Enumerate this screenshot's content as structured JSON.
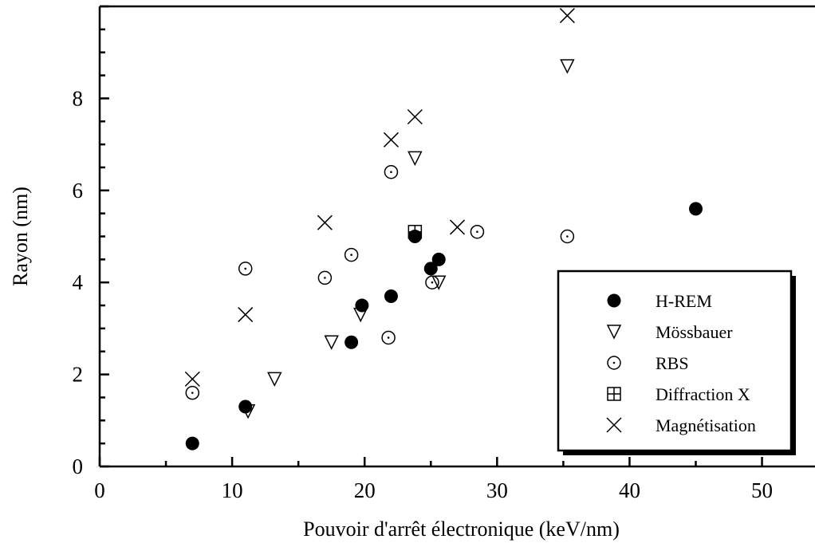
{
  "chart_data": {
    "type": "scatter",
    "title": "",
    "xlabel": "Pouvoir d'arrêt électronique (keV/nm)",
    "ylabel": "Rayon (nm)",
    "xlim": [
      0,
      54
    ],
    "ylim": [
      0,
      10
    ],
    "x_ticks": [
      "0",
      "10",
      "20",
      "30",
      "40",
      "50"
    ],
    "y_ticks": [
      "0",
      "2",
      "4",
      "6",
      "8"
    ],
    "grid": false,
    "legend_position": "bottom-right",
    "series": [
      {
        "name": "H-REM",
        "marker": "filled-circle",
        "points": [
          [
            7,
            0.5
          ],
          [
            11,
            1.3
          ],
          [
            19,
            2.7
          ],
          [
            19.8,
            3.5
          ],
          [
            22,
            3.7
          ],
          [
            23.8,
            5.0
          ],
          [
            25,
            4.3
          ],
          [
            25.6,
            4.5
          ],
          [
            45,
            5.6
          ]
        ]
      },
      {
        "name": "Mössbauer",
        "marker": "triangle-down",
        "points": [
          [
            11.2,
            1.2
          ],
          [
            13.2,
            1.9
          ],
          [
            17.5,
            2.7
          ],
          [
            19.7,
            3.3
          ],
          [
            25.6,
            4.0
          ],
          [
            23.8,
            6.7
          ],
          [
            35.3,
            8.7
          ]
        ]
      },
      {
        "name": "RBS",
        "marker": "dotted-circle",
        "points": [
          [
            7,
            1.6
          ],
          [
            11,
            4.3
          ],
          [
            17,
            4.1
          ],
          [
            19,
            4.6
          ],
          [
            21.8,
            2.8
          ],
          [
            22,
            6.4
          ],
          [
            25.1,
            4.0
          ],
          [
            28.5,
            5.1
          ],
          [
            35.3,
            5.0
          ]
        ]
      },
      {
        "name": "Diffraction X",
        "marker": "square-cross",
        "points": [
          [
            23.8,
            5.1
          ]
        ]
      },
      {
        "name": "Magnétisation",
        "marker": "x",
        "points": [
          [
            7,
            1.9
          ],
          [
            11,
            3.3
          ],
          [
            17,
            5.3
          ],
          [
            22,
            7.1
          ],
          [
            23.8,
            7.6
          ],
          [
            27,
            5.2
          ],
          [
            35.3,
            9.8
          ]
        ]
      }
    ]
  }
}
